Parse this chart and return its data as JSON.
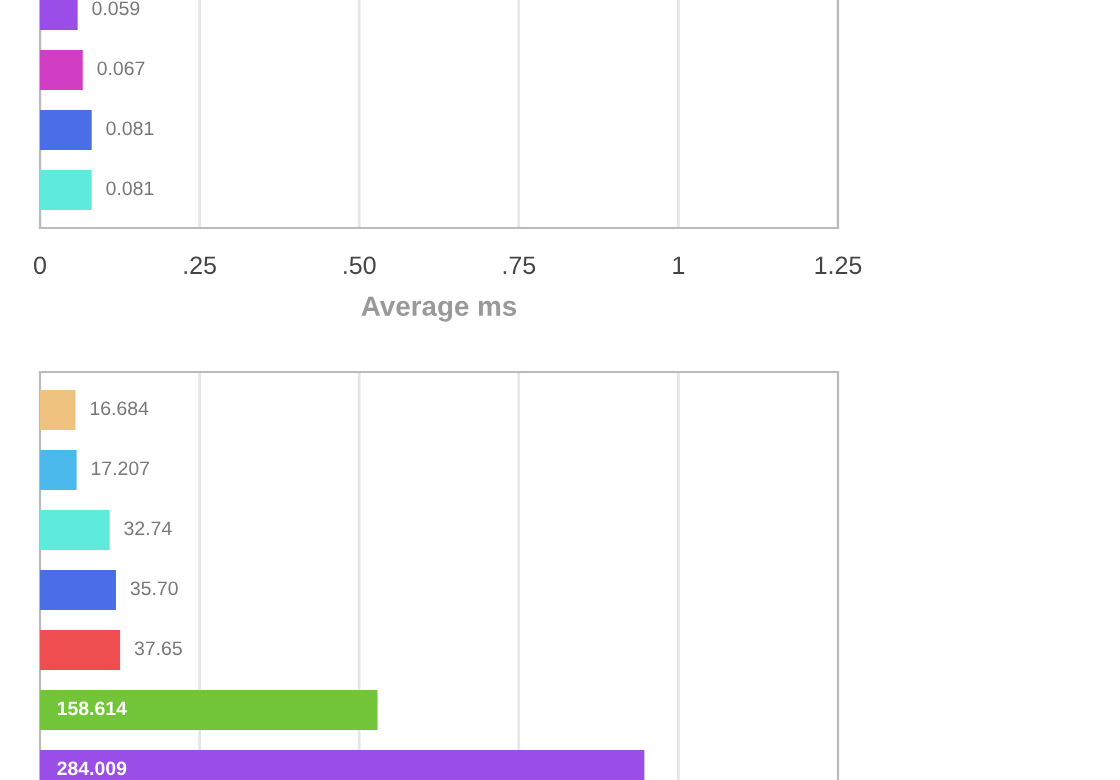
{
  "chart_data": [
    {
      "type": "bar",
      "orientation": "horizontal",
      "categories": [
        null,
        null,
        null,
        null
      ],
      "values": [
        0.059,
        0.067,
        0.081,
        0.081
      ],
      "value_labels": [
        "0.059",
        "0.067",
        "0.081",
        "0.081"
      ],
      "colors": [
        "#9b4de8",
        "#d23ec3",
        "#4a6ee8",
        "#5eebdb"
      ],
      "xlabel": "Average ms",
      "xlim": [
        0,
        1.25
      ],
      "xticks": [
        0,
        {
          "value": 0.25,
          "label": ".25"
        },
        {
          "value": 0.5,
          "label": ".50"
        },
        {
          "value": 0.75,
          "label": ".75"
        },
        1,
        1.25
      ],
      "grid": "x",
      "tick_labels": "x"
    },
    {
      "type": "bar",
      "orientation": "horizontal",
      "categories": [
        null,
        null,
        null,
        null,
        null,
        null,
        null
      ],
      "values": [
        16.684,
        17.207,
        32.74,
        35.7,
        37.65,
        158.614,
        284.009
      ],
      "value_labels": [
        "16.684",
        "17.207",
        "32.74",
        "35.70",
        "37.65",
        "158.614",
        "284.009"
      ],
      "colors": [
        "#efc27f",
        "#4bb9ec",
        "#5eebdb",
        "#4a6ee8",
        "#ee4e4f",
        "#72c538",
        "#9b4de8"
      ],
      "xlim": [
        0,
        375
      ],
      "xticks": [
        {
          "value": 75,
          "label": null
        },
        {
          "value": 150,
          "label": null
        },
        {
          "value": 225,
          "label": null
        },
        {
          "value": 300,
          "label": null
        }
      ],
      "grid": "x",
      "tick_labels": false
    }
  ]
}
